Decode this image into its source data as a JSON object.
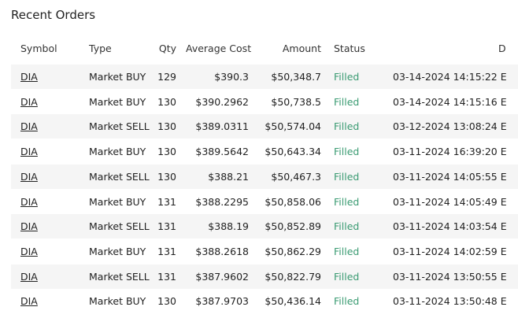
{
  "header": {
    "title": "Recent Orders"
  },
  "table": {
    "columns": [
      "Symbol",
      "Type",
      "Qty",
      "Average Cost",
      "Amount",
      "Status",
      "D"
    ],
    "rows": [
      [
        "DIA",
        "Market BUY",
        "129",
        "$390.3",
        "$50,348.7",
        "Filled",
        "03-14-2024 14:15:22 E"
      ],
      [
        "DIA",
        "Market BUY",
        "130",
        "$390.2962",
        "$50,738.5",
        "Filled",
        "03-14-2024 14:15:16 E"
      ],
      [
        "DIA",
        "Market SELL",
        "130",
        "$389.0311",
        "$50,574.04",
        "Filled",
        "03-12-2024 13:08:24 E"
      ],
      [
        "DIA",
        "Market BUY",
        "130",
        "$389.5642",
        "$50,643.34",
        "Filled",
        "03-11-2024 16:39:20 E"
      ],
      [
        "DIA",
        "Market SELL",
        "130",
        "$388.21",
        "$50,467.3",
        "Filled",
        "03-11-2024 14:05:55 E"
      ],
      [
        "DIA",
        "Market BUY",
        "131",
        "$388.2295",
        "$50,858.06",
        "Filled",
        "03-11-2024 14:05:49 E"
      ],
      [
        "DIA",
        "Market SELL",
        "131",
        "$388.19",
        "$50,852.89",
        "Filled",
        "03-11-2024 14:03:54 E"
      ],
      [
        "DIA",
        "Market BUY",
        "131",
        "$388.2618",
        "$50,862.29",
        "Filled",
        "03-11-2024 14:02:59 E"
      ],
      [
        "DIA",
        "Market SELL",
        "131",
        "$387.9602",
        "$50,822.79",
        "Filled",
        "03-11-2024 13:50:55 E"
      ],
      [
        "DIA",
        "Market BUY",
        "130",
        "$387.9703",
        "$50,436.14",
        "Filled",
        "03-11-2024 13:50:48 E"
      ]
    ]
  }
}
